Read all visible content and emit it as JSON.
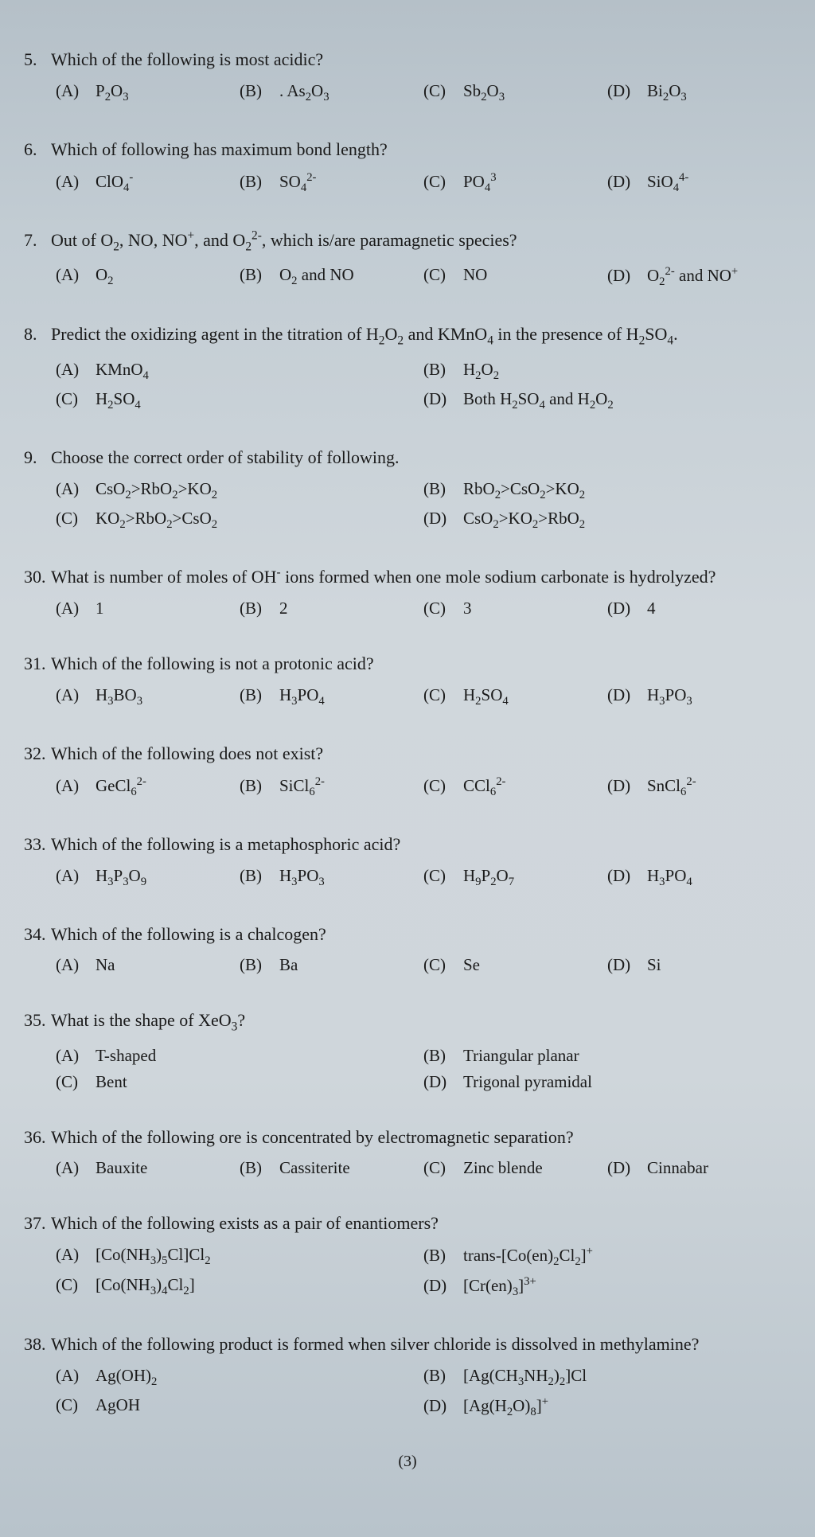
{
  "page_number": "(3)",
  "questions": [
    {
      "num": "5.",
      "text": "Which of the following is most acidic?",
      "layout": "four-col",
      "options": [
        {
          "label": "(A)",
          "html": "P<sub>2</sub>O<sub>3</sub>"
        },
        {
          "label": "(B)",
          "html": ". As<sub>2</sub>O<sub>3</sub>"
        },
        {
          "label": "(C)",
          "html": "Sb<sub>2</sub>O<sub>3</sub>"
        },
        {
          "label": "(D)",
          "html": "Bi<sub>2</sub>O<sub>3</sub>"
        }
      ]
    },
    {
      "num": "6.",
      "text": "Which of following has maximum bond length?",
      "layout": "four-col",
      "options": [
        {
          "label": "(A)",
          "html": "ClO<sub>4</sub><sup>-</sup>"
        },
        {
          "label": "(B)",
          "html": "SO<sub>4</sub><sup>2-</sup>"
        },
        {
          "label": "(C)",
          "html": "PO<sub>4</sub><sup>3</sup>"
        },
        {
          "label": "(D)",
          "html": "SiO<sub>4</sub><sup>4-</sup>"
        }
      ]
    },
    {
      "num": "7.",
      "text": "Out of O<sub>2</sub>, NO, NO<sup>+</sup>, and O<sub>2</sub><sup>2-</sup>, which is/are paramagnetic species?",
      "layout": "four-col",
      "options": [
        {
          "label": "(A)",
          "html": "O<sub>2</sub>"
        },
        {
          "label": "(B)",
          "html": "O<sub>2</sub> and NO"
        },
        {
          "label": "(C)",
          "html": "NO"
        },
        {
          "label": "(D)",
          "html": "O<sub>2</sub><sup>2-</sup> and NO<sup>+</sup>"
        }
      ]
    },
    {
      "num": "8.",
      "text": "Predict the oxidizing agent in the titration of H<sub>2</sub>O<sub>2</sub> and KMnO<sub>4</sub> in the presence of H<sub>2</sub>SO<sub>4</sub>.",
      "layout": "two-col",
      "options": [
        {
          "label": "(A)",
          "html": "KMnO<sub>4</sub>"
        },
        {
          "label": "(B)",
          "html": "H<sub>2</sub>O<sub>2</sub>"
        },
        {
          "label": "(C)",
          "html": "H<sub>2</sub>SO<sub>4</sub>"
        },
        {
          "label": "(D)",
          "html": "Both H<sub>2</sub>SO<sub>4</sub> and H<sub>2</sub>O<sub>2</sub>"
        }
      ]
    },
    {
      "num": "9.",
      "text": "Choose the correct order of stability of following.",
      "layout": "two-col",
      "options": [
        {
          "label": "(A)",
          "html": "CsO<sub>2</sub>&gt;RbO<sub>2</sub>&gt;KO<sub>2</sub>"
        },
        {
          "label": "(B)",
          "html": "RbO<sub>2</sub>&gt;CsO<sub>2</sub>&gt;KO<sub>2</sub>"
        },
        {
          "label": "(C)",
          "html": "KO<sub>2</sub>&gt;RbO<sub>2</sub>&gt;CsO<sub>2</sub>"
        },
        {
          "label": "(D)",
          "html": "CsO<sub>2</sub>&gt;KO<sub>2</sub>&gt;RbO<sub>2</sub>"
        }
      ]
    },
    {
      "num": "30.",
      "text": "What is number of moles of OH<sup>-</sup> ions formed when one mole sodium carbonate is hydrolyzed?",
      "layout": "four-col",
      "options": [
        {
          "label": "(A)",
          "html": "1"
        },
        {
          "label": "(B)",
          "html": "2"
        },
        {
          "label": "(C)",
          "html": "3"
        },
        {
          "label": "(D)",
          "html": "4"
        }
      ]
    },
    {
      "num": "31.",
      "text": "Which of the following is not a protonic acid?",
      "layout": "four-col",
      "options": [
        {
          "label": "(A)",
          "html": "H<sub>3</sub>BO<sub>3</sub>"
        },
        {
          "label": "(B)",
          "html": "H<sub>3</sub>PO<sub>4</sub>"
        },
        {
          "label": "(C)",
          "html": "H<sub>2</sub>SO<sub>4</sub>"
        },
        {
          "label": "(D)",
          "html": "H<sub>3</sub>PO<sub>3</sub>"
        }
      ]
    },
    {
      "num": "32.",
      "text": "Which of the following does not exist?",
      "layout": "four-col",
      "options": [
        {
          "label": "(A)",
          "html": "GeCl<sub>6</sub><sup>2-</sup>"
        },
        {
          "label": "(B)",
          "html": "SiCl<sub>6</sub><sup>2-</sup>"
        },
        {
          "label": "(C)",
          "html": "CCl<sub>6</sub><sup>2-</sup>"
        },
        {
          "label": "(D)",
          "html": "SnCl<sub>6</sub><sup>2-</sup>"
        }
      ]
    },
    {
      "num": "33.",
      "text": "Which of the following is a metaphosphoric acid?",
      "layout": "four-col",
      "options": [
        {
          "label": "(A)",
          "html": "H<sub>3</sub>P<sub>3</sub>O<sub>9</sub>"
        },
        {
          "label": "(B)",
          "html": "H<sub>3</sub>PO<sub>3</sub>"
        },
        {
          "label": "(C)",
          "html": "H<sub>9</sub>P<sub>2</sub>O<sub>7</sub>"
        },
        {
          "label": "(D)",
          "html": "H<sub>3</sub>PO<sub>4</sub>"
        }
      ]
    },
    {
      "num": "34.",
      "text": "Which of the following is a chalcogen?",
      "layout": "four-col",
      "options": [
        {
          "label": "(A)",
          "html": "Na"
        },
        {
          "label": "(B)",
          "html": "Ba"
        },
        {
          "label": "(C)",
          "html": "Se"
        },
        {
          "label": "(D)",
          "html": "Si"
        }
      ]
    },
    {
      "num": "35.",
      "text": "What is the shape of XeO<sub>3</sub>?",
      "layout": "two-col",
      "options": [
        {
          "label": "(A)",
          "html": "T-shaped"
        },
        {
          "label": "(B)",
          "html": "Triangular planar"
        },
        {
          "label": "(C)",
          "html": "Bent"
        },
        {
          "label": "(D)",
          "html": "Trigonal pyramidal"
        }
      ]
    },
    {
      "num": "36.",
      "text": "Which of the following ore is concentrated by electromagnetic separation?",
      "layout": "four-col",
      "options": [
        {
          "label": "(A)",
          "html": "Bauxite"
        },
        {
          "label": "(B)",
          "html": "Cassiterite"
        },
        {
          "label": "(C)",
          "html": "Zinc blende"
        },
        {
          "label": "(D)",
          "html": "Cinnabar"
        }
      ]
    },
    {
      "num": "37.",
      "text": "Which of the following exists as a pair of enantiomers?",
      "layout": "two-col",
      "options": [
        {
          "label": "(A)",
          "html": "[Co(NH<sub>3</sub>)<sub>5</sub>Cl]Cl<sub>2</sub>"
        },
        {
          "label": "(B)",
          "html": "trans-[Co(en)<sub>2</sub>Cl<sub>2</sub>]<sup>+</sup>"
        },
        {
          "label": "(C)",
          "html": "[Co(NH<sub>3</sub>)<sub>4</sub>Cl<sub>2</sub>]"
        },
        {
          "label": "(D)",
          "html": "[Cr(en)<sub>3</sub>]<sup>3+</sup>"
        }
      ]
    },
    {
      "num": "38.",
      "text": "Which of the following product is formed when silver chloride is dissolved in methylamine?",
      "layout": "two-col",
      "options": [
        {
          "label": "(A)",
          "html": "Ag(OH)<sub>2</sub>"
        },
        {
          "label": "(B)",
          "html": "[Ag(CH<sub>3</sub>NH<sub>2</sub>)<sub>2</sub>]Cl"
        },
        {
          "label": "(C)",
          "html": "AgOH"
        },
        {
          "label": "(D)",
          "html": "[Ag(H<sub>2</sub>O)<sub>8</sub>]<sup>+</sup>"
        }
      ]
    }
  ]
}
